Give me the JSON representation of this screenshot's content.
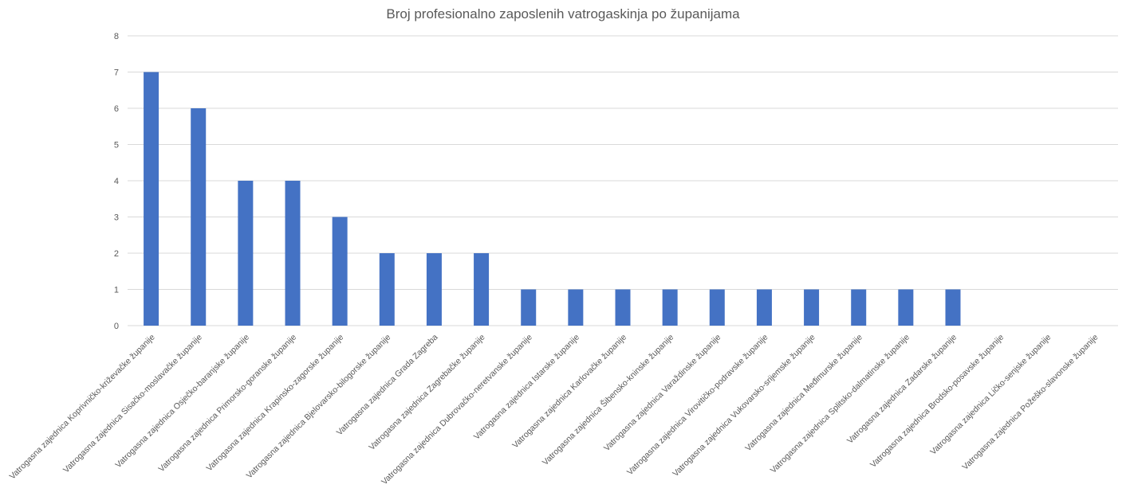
{
  "chart_data": {
    "type": "bar",
    "title": "Broj profesionalno zaposlenih vatrogaskinja po županijama",
    "xlabel": "",
    "ylabel": "",
    "ylim": [
      0,
      8
    ],
    "yticks": [
      0,
      1,
      2,
      3,
      4,
      5,
      6,
      7,
      8
    ],
    "grid": true,
    "legend": "none",
    "bar_color": "#4472c4",
    "categories": [
      "Vatrogasna zajednica Koprivničko-križevačke županije",
      "Vatrogasna zajednica Sisačko-moslavačke županije",
      "Vatrogasna zajednica Osječko-baranjske županije",
      "Vatrogasna zajednica Primorsko-goranske županije",
      "Vatrogasna zajednica Krapinsko-zagorske županije",
      "Vatrogasna zajednica Bjelovarsko-bilogorske županije",
      "Vatrogasna zajednica Grada Zagreba",
      "Vatrogasna zajednica Zagrebačke županije",
      "Vatrogasna zajednica Dubrovačko-neretvanske županije",
      "Vatrogasna zajednica Istarske županije",
      "Vatrogasna zajednica Karlovačke županije",
      "Vatrogasna zajednica Šibensko-kninske županije",
      "Vatrogasna zajednica Varaždinske županije",
      "Vatrogasna zajednica Virovitičko-podravske županije",
      "Vatrogasna zajednica Vukovarsko-srijemske županije",
      "Vatrogasna zajednica Međimurske županije",
      "Vatrogasna zajednica Splitsko-dalmatinske županije",
      "Vatrogasna zajednica Zadarske županije",
      "Vatrogasna zajednica Brodsko-posavske županije",
      "Vatrogasna zajednica Ličko-senjske županije",
      "Vatrogasna zajednica Požeško-slavonske županije"
    ],
    "values": [
      7,
      6,
      4,
      4,
      3,
      2,
      2,
      2,
      1,
      1,
      1,
      1,
      1,
      1,
      1,
      1,
      1,
      1,
      0,
      0,
      0
    ]
  }
}
